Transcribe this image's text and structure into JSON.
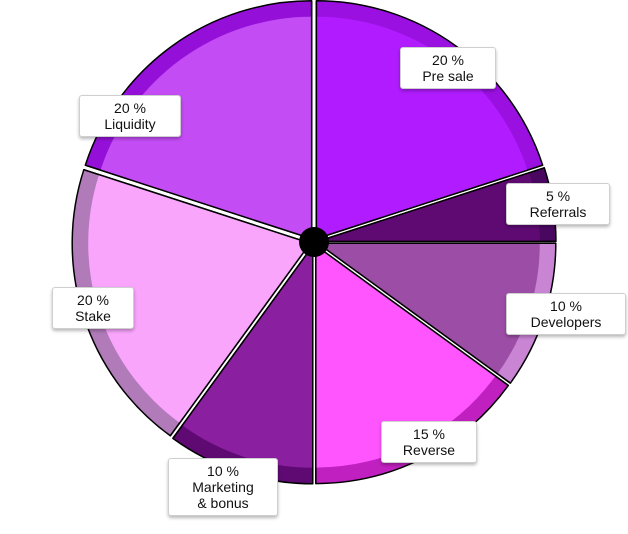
{
  "chart_data": {
    "type": "pie",
    "title": "",
    "slices": [
      {
        "label": "Pre sale",
        "value": 20,
        "value_label": "20 %",
        "color": "#b01cff",
        "rim_color": "#9a10e0"
      },
      {
        "label": "Referrals",
        "value": 5,
        "value_label": "5 %",
        "color": "#5e0a72",
        "rim_color": "#4a0760"
      },
      {
        "label": "Developers",
        "value": 10,
        "value_label": "10 %",
        "color": "#9c4ea6",
        "rim_color": "#c984d4"
      },
      {
        "label": "Reverse",
        "value": 15,
        "value_label": "15 %",
        "color": "#ff55ff",
        "rim_color": "#c020c0"
      },
      {
        "label": "Marketing\n& bonus",
        "value": 10,
        "value_label": "10 %",
        "color": "#8a1fa0",
        "rim_color": "#5e0a72"
      },
      {
        "label": "Stake",
        "value": 20,
        "value_label": "20 %",
        "color": "#f8a5fb",
        "rim_color": "#b07bb8"
      },
      {
        "label": "Liquidity",
        "value": 20,
        "value_label": "20 %",
        "color": "#c44cf5",
        "rim_color": "#9410d8"
      }
    ],
    "start_angle_deg": 0,
    "direction": "clockwise",
    "exploded": true,
    "center_hub_color": "#000000"
  }
}
